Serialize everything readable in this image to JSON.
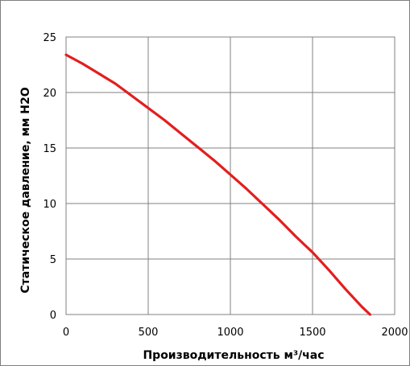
{
  "chart_data": {
    "type": "line",
    "title": "",
    "xlabel": "Производительность м³/час",
    "ylabel": "Статическое давление,  мм H2O",
    "xlim": [
      0,
      2000
    ],
    "ylim": [
      0,
      25
    ],
    "x_ticks": [
      "0",
      "500",
      "1000",
      "1500",
      "2000"
    ],
    "y_ticks": [
      "0",
      "5",
      "10",
      "15",
      "20",
      "25"
    ],
    "grid": true,
    "legend": "none",
    "series": [
      {
        "color": "#e31e1e",
        "x": [
          0,
          100,
          200,
          300,
          400,
          500,
          600,
          700,
          800,
          900,
          1000,
          1100,
          1200,
          1300,
          1400,
          1500,
          1600,
          1700,
          1800,
          1850
        ],
        "y": [
          23.4,
          22.6,
          21.7,
          20.8,
          19.7,
          18.6,
          17.5,
          16.3,
          15.1,
          13.9,
          12.6,
          11.3,
          9.9,
          8.5,
          7.0,
          5.6,
          4.0,
          2.3,
          0.7,
          0
        ]
      }
    ]
  }
}
